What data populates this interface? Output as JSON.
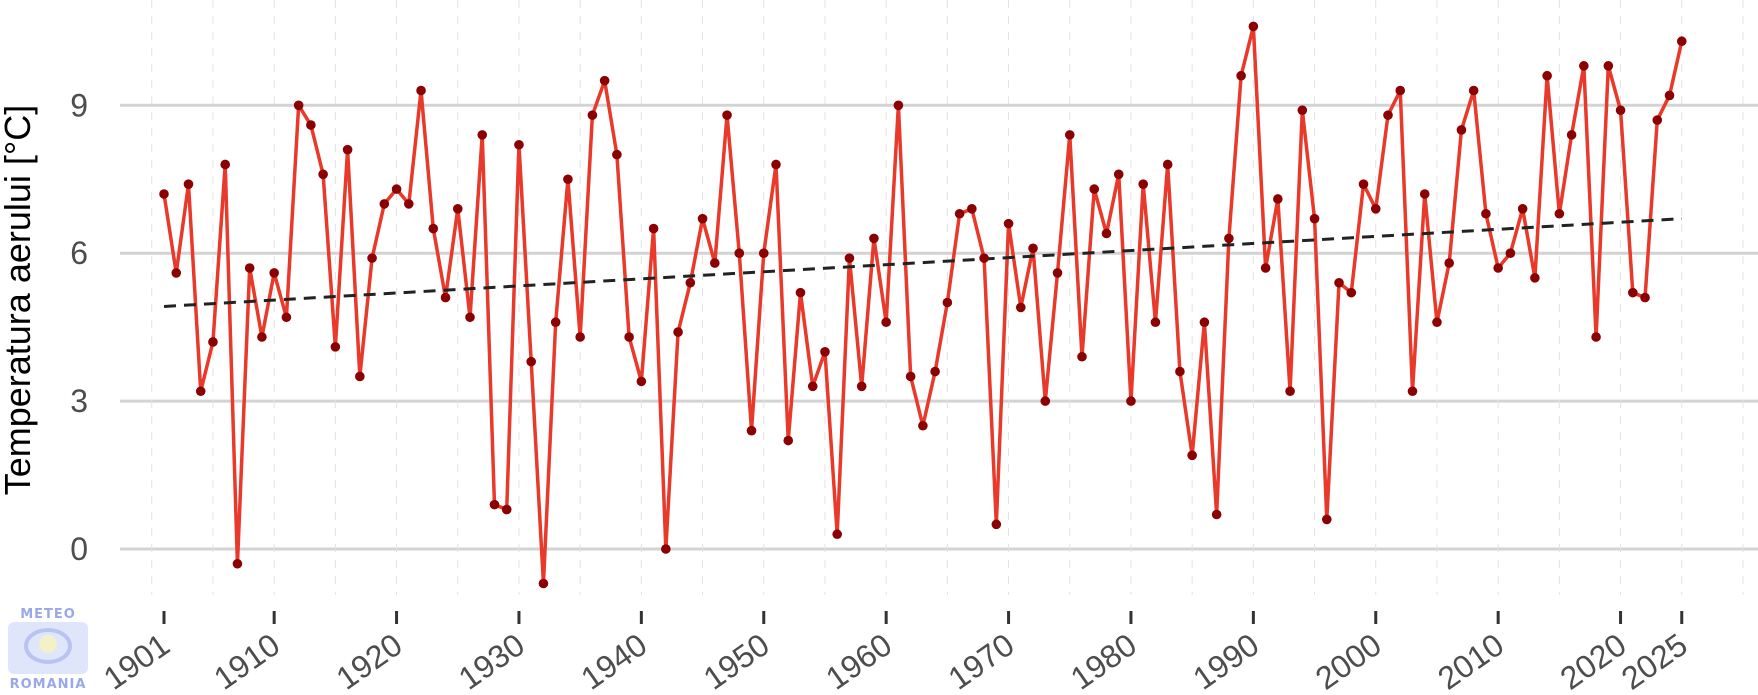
{
  "chart_data": {
    "type": "line",
    "title": "",
    "xlabel": "",
    "ylabel": "Temperatura aerului [°C]",
    "xlim": [
      1895,
      2035
    ],
    "ylim": [
      -1.2,
      10.8
    ],
    "x_ticks": [
      1901,
      1910,
      1920,
      1930,
      1940,
      1950,
      1960,
      1970,
      1980,
      1990,
      2000,
      2010,
      2020,
      2025
    ],
    "y_ticks": [
      0,
      3,
      6,
      9
    ],
    "grid": true,
    "legend": "none",
    "x_start": 1901,
    "series": [
      {
        "color": "#e8392a",
        "point_color": "#8b0000",
        "values": [
          7.2,
          5.6,
          7.4,
          3.2,
          4.2,
          7.8,
          -0.3,
          5.7,
          4.3,
          5.6,
          4.7,
          9.0,
          8.6,
          7.6,
          4.1,
          8.1,
          3.5,
          5.9,
          7.0,
          7.3,
          7.0,
          9.3,
          6.5,
          5.1,
          6.9,
          4.7,
          8.4,
          0.9,
          0.8,
          8.2,
          3.8,
          -0.7,
          4.6,
          7.5,
          4.3,
          8.8,
          9.5,
          8.0,
          4.3,
          3.4,
          6.5,
          0.0,
          4.4,
          5.4,
          6.7,
          5.8,
          8.8,
          6.0,
          2.4,
          6.0,
          7.8,
          2.2,
          5.2,
          3.3,
          4.0,
          0.3,
          5.9,
          3.3,
          6.3,
          4.6,
          9.0,
          3.5,
          2.5,
          3.6,
          5.0,
          6.8,
          6.9,
          5.9,
          0.5,
          6.6,
          4.9,
          6.1,
          3.0,
          5.6,
          8.4,
          3.9,
          7.3,
          6.4,
          7.6,
          3.0,
          7.4,
          4.6,
          7.8,
          3.6,
          1.9,
          4.6,
          0.7,
          6.3,
          9.6,
          10.6,
          5.7,
          7.1,
          3.2,
          8.9,
          6.7,
          0.6,
          5.4,
          5.2,
          7.4,
          6.9,
          8.8,
          9.3,
          3.2,
          7.2,
          4.6,
          5.8,
          8.5,
          9.3,
          6.8,
          5.7,
          6.0,
          6.9,
          5.5,
          9.6,
          6.8,
          8.4,
          9.8,
          4.3,
          9.8,
          8.9,
          5.2,
          5.1,
          8.7,
          9.2,
          10.3
        ]
      },
      {
        "style": "trend",
        "color": "#222222",
        "x": [
          1901,
          2025
        ],
        "values": [
          4.92,
          6.7
        ]
      }
    ]
  },
  "logo": {
    "top": "METEO",
    "bottom": "ROMANIA"
  }
}
